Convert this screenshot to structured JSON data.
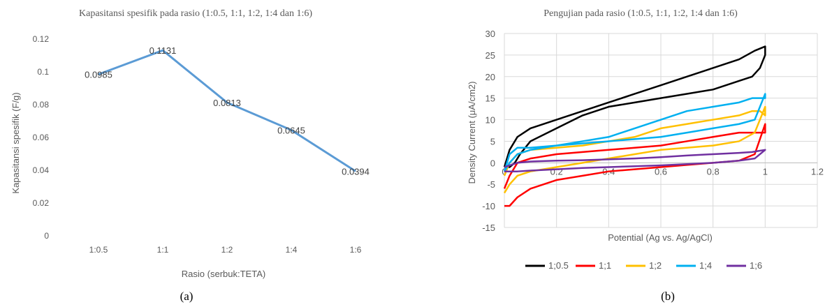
{
  "chart_data": [
    {
      "type": "line",
      "title": "Kapasitansi spesifik pada rasio (1:0.5, 1:1, 1:2, 1:4 dan 1:6)",
      "xlabel": "Rasio (serbuk:TETA)",
      "ylabel": "Kapasitansi spesifik (F/g)",
      "categories": [
        "1:0.5",
        "1:1",
        "1:2",
        "1:4",
        "1:6"
      ],
      "values": [
        0.0985,
        0.1131,
        0.0813,
        0.0645,
        0.0394
      ],
      "data_labels": [
        "0.0985",
        "0.1131",
        "0.0813",
        "0.0645",
        "0.0394"
      ],
      "ylim": [
        0,
        0.12
      ],
      "yticks": [
        "0",
        "0.02",
        "0.04",
        "0.06",
        "0.08",
        "0.1",
        "0.12"
      ],
      "grid": false,
      "line_color": "#5B9BD5",
      "caption": "(a)"
    },
    {
      "type": "line",
      "title": "Pengujian pada rasio (1:0.5, 1:1, 1:2, 1:4 dan 1:6)",
      "xlabel": "Potential (Ag vs. Ag/AgCl)",
      "ylabel": "Density Current (μA/cm2)",
      "xlim": [
        0,
        1.2
      ],
      "ylim": [
        -15,
        30
      ],
      "xticks": [
        "0",
        "0.2",
        "0.4",
        "0.6",
        "0.8",
        "1",
        "1.2"
      ],
      "yticks": [
        "-15",
        "-10",
        "-5",
        "0",
        "5",
        "10",
        "15",
        "20",
        "25",
        "30"
      ],
      "grid": true,
      "legend": "bottom",
      "caption": "(b)",
      "series": [
        {
          "name": "1;0.5",
          "color": "#000000",
          "x": [
            0,
            0.02,
            0.05,
            0.1,
            0.2,
            0.3,
            0.4,
            0.5,
            0.6,
            0.7,
            0.8,
            0.9,
            0.96,
            1.0,
            1.0,
            0.98,
            0.95,
            0.9,
            0.8,
            0.7,
            0.6,
            0.5,
            0.4,
            0.3,
            0.2,
            0.1,
            0.06,
            0.04,
            0.02,
            0
          ],
          "y": [
            -1,
            3,
            6,
            8,
            10,
            12,
            14,
            16,
            18,
            20,
            22,
            24,
            26,
            27,
            25,
            22,
            20,
            19,
            17,
            16,
            15,
            14,
            13,
            11,
            8,
            5,
            2,
            0,
            -1,
            -1
          ]
        },
        {
          "name": "1;1",
          "color": "#FF0000",
          "x": [
            0,
            0.02,
            0.05,
            0.1,
            0.2,
            0.3,
            0.4,
            0.5,
            0.6,
            0.7,
            0.8,
            0.9,
            0.96,
            1.0,
            1.0,
            0.98,
            0.95,
            0.9,
            0.8,
            0.7,
            0.6,
            0.5,
            0.4,
            0.3,
            0.2,
            0.1,
            0.05,
            0.02,
            0
          ],
          "y": [
            -10,
            -10,
            -8,
            -6,
            -4,
            -3,
            -2,
            -1.5,
            -1,
            -0.5,
            0,
            0.5,
            2,
            9,
            7,
            7,
            7,
            7,
            6,
            5,
            4,
            3.5,
            3,
            2.5,
            2,
            1,
            0,
            -3,
            -6
          ]
        },
        {
          "name": "1;2",
          "color": "#FFC000",
          "x": [
            0,
            0.02,
            0.05,
            0.1,
            0.2,
            0.3,
            0.4,
            0.5,
            0.6,
            0.7,
            0.8,
            0.9,
            0.96,
            1.0,
            1.0,
            0.98,
            0.95,
            0.9,
            0.8,
            0.7,
            0.6,
            0.5,
            0.4,
            0.3,
            0.2,
            0.1,
            0.05,
            0.02,
            0
          ],
          "y": [
            -7,
            -5,
            -3,
            -2,
            -1,
            0,
            1,
            2,
            3,
            3.5,
            4,
            5,
            7,
            13,
            11,
            12,
            12,
            11,
            10,
            9,
            8,
            6,
            5,
            4,
            3.5,
            3,
            2,
            0,
            -3
          ]
        },
        {
          "name": "1;4",
          "color": "#00B0F0",
          "x": [
            0,
            0.02,
            0.05,
            0.1,
            0.2,
            0.3,
            0.4,
            0.5,
            0.6,
            0.7,
            0.8,
            0.9,
            0.96,
            1.0,
            1.0,
            0.98,
            0.95,
            0.9,
            0.8,
            0.7,
            0.6,
            0.5,
            0.4,
            0.3,
            0.2,
            0.1,
            0.05,
            0.02,
            0
          ],
          "y": [
            -2,
            2,
            3.5,
            3.5,
            4,
            4.5,
            5,
            5.5,
            6,
            7,
            8,
            9,
            10,
            16,
            15,
            15,
            15,
            14,
            13,
            12,
            10,
            8,
            6,
            5,
            4,
            3,
            2,
            0,
            -2
          ]
        },
        {
          "name": "1;6",
          "color": "#7030A0",
          "x": [
            0,
            0.05,
            0.1,
            0.2,
            0.3,
            0.4,
            0.5,
            0.6,
            0.7,
            0.8,
            0.9,
            0.96,
            1.0,
            1.0,
            0.98,
            0.95,
            0.9,
            0.8,
            0.7,
            0.6,
            0.5,
            0.4,
            0.3,
            0.2,
            0.1,
            0.05,
            0
          ],
          "y": [
            -2,
            -2,
            -1.8,
            -1.5,
            -1.2,
            -1,
            -0.8,
            -0.6,
            -0.3,
            0,
            0.5,
            1,
            3,
            3,
            2.8,
            2.5,
            2.3,
            2,
            1.7,
            1.3,
            1,
            0.8,
            0.6,
            0.5,
            0.3,
            0,
            -1
          ]
        }
      ]
    }
  ]
}
